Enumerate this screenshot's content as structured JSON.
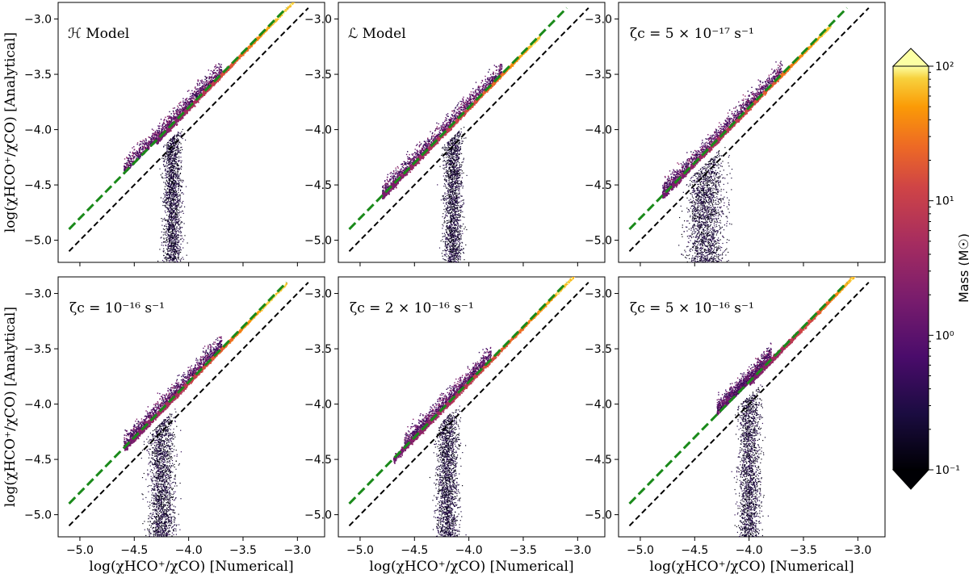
{
  "chart_data": {
    "type": "scatter",
    "layout": "2x3 grid",
    "xlabel": "log(χHCO⁺/χCO) [Numerical]",
    "ylabel": "log(χHCO⁺/χCO) [Analytical]",
    "xlim": [
      -5.2,
      -2.75
    ],
    "ylim": [
      -5.2,
      -2.85
    ],
    "xticks": [
      -5.0,
      -4.5,
      -4.0,
      -3.5,
      -3.0
    ],
    "yticks": [
      -5.0,
      -4.5,
      -4.0,
      -3.5,
      -3.0
    ],
    "xtick_labels": [
      "−5.0",
      "−4.5",
      "−4.0",
      "−3.5",
      "−3.0"
    ],
    "ytick_labels": [
      "−5.0",
      "−4.5",
      "−4.0",
      "−3.5",
      "−3.0"
    ],
    "reference_lines": [
      {
        "name": "one-to-one",
        "style": "dashed",
        "color": "#000000",
        "x": [
          -5.1,
          -2.9
        ],
        "y": [
          -5.1,
          -2.9
        ]
      },
      {
        "name": "fit",
        "style": "dashed",
        "color": "#1a8a1a",
        "x": [
          -5.1,
          -3.1
        ],
        "y": [
          -4.9,
          -2.9
        ]
      }
    ],
    "colorbar": {
      "label": "Mass (M☉)",
      "scale": "log",
      "range": [
        0.1,
        100
      ],
      "tick_labels": [
        "10⁻¹",
        "10⁰",
        "10¹",
        "10²"
      ],
      "extend": "both"
    },
    "panels": [
      {
        "title": "ℋ Model",
        "band_x": [
          -4.3,
          -3.2
        ],
        "spread_x": [
          -4.6,
          -3.7
        ],
        "bottom_cloud_x": [
          -4.4,
          -3.9
        ],
        "tip": [
          -3.2,
          -3.0
        ]
      },
      {
        "title": "ℒ Model",
        "band_x": [
          -4.8,
          -3.4
        ],
        "spread_x": [
          -4.8,
          -3.7
        ],
        "bottom_cloud_x": [
          -4.4,
          -3.9
        ],
        "tip": [
          -3.4,
          -3.35
        ]
      },
      {
        "title": "ζc = 5 × 10⁻¹⁷ s⁻¹",
        "band_x": [
          -4.8,
          -3.3
        ],
        "spread_x": [
          -4.8,
          -3.7
        ],
        "bottom_cloud_x": [
          -4.9,
          -3.9
        ],
        "tip": [
          -3.3,
          -3.25
        ]
      },
      {
        "title": "ζc = 10⁻¹⁶ s⁻¹",
        "band_x": [
          -4.6,
          -3.3
        ],
        "spread_x": [
          -4.6,
          -3.7
        ],
        "bottom_cloud_x": [
          -4.6,
          -3.9
        ],
        "tip": [
          -3.3,
          -3.1
        ]
      },
      {
        "title": "ζc = 2 × 10⁻¹⁶ s⁻¹",
        "band_x": [
          -4.7,
          -3.15
        ],
        "spread_x": [
          -4.6,
          -3.8
        ],
        "bottom_cloud_x": [
          -4.5,
          -3.9
        ],
        "tip": [
          -3.15,
          -2.98
        ]
      },
      {
        "title": "ζc = 5 × 10⁻¹⁶ s⁻¹",
        "band_x": [
          -4.0,
          -3.05
        ],
        "spread_x": [
          -4.3,
          -3.8
        ],
        "bottom_cloud_x": [
          -4.3,
          -3.7
        ],
        "tip": [
          -3.05,
          -2.85
        ]
      }
    ]
  }
}
